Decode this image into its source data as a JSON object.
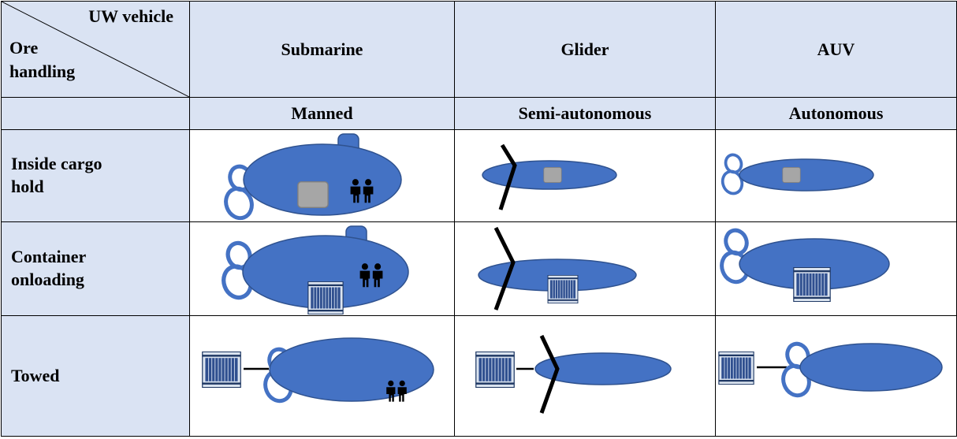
{
  "table": {
    "corner": {
      "top": "UW vehicle",
      "bottom": "Ore handling"
    },
    "header": [
      "Submarine",
      "Glider",
      "AUV"
    ],
    "subheader": [
      "Manned",
      "Semi-autonomous",
      "Autonomous"
    ],
    "rows": [
      {
        "label": "Inside cargo hold"
      },
      {
        "label": "Container onloading"
      },
      {
        "label": "Towed"
      }
    ]
  }
}
